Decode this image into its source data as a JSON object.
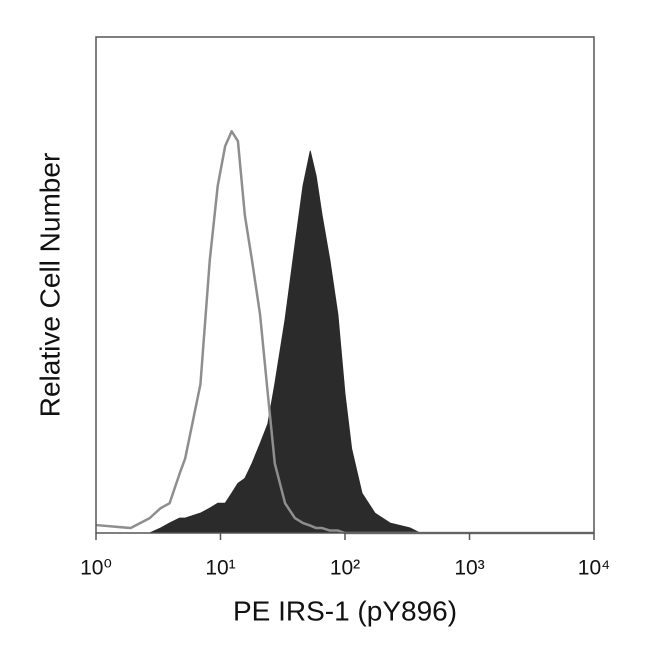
{
  "chart_data": {
    "type": "histogram",
    "xlabel": "PE IRS-1 (pY896)",
    "ylabel": "Relative Cell Number",
    "xscale": "log",
    "xlim": [
      1,
      10000
    ],
    "ylim": [
      0,
      100
    ],
    "xticks": [
      {
        "value": 1,
        "label": "10⁰"
      },
      {
        "value": 10,
        "label": "10¹"
      },
      {
        "value": 100,
        "label": "10²"
      },
      {
        "value": 1000,
        "label": "10³"
      },
      {
        "value": 10000,
        "label": "10⁴"
      }
    ],
    "x": [
      1,
      1.9,
      2.7,
      3.3,
      3.9,
      4.7,
      5.2,
      6.9,
      8.2,
      9.5,
      10.9,
      12.3,
      13.8,
      15.7,
      17.9,
      20.8,
      24,
      27.3,
      33,
      39.6,
      46,
      52.6,
      58.6,
      65.5,
      75.6,
      87.7,
      100,
      113,
      137,
      174,
      230,
      334,
      400,
      10000
    ],
    "series": [
      {
        "color": "#2b2b2b",
        "fill": true,
        "values": [
          0,
          0,
          0,
          1,
          2,
          3,
          3,
          4,
          5,
          6,
          6,
          8,
          10,
          11,
          14,
          18,
          22,
          30,
          43,
          58,
          70,
          77,
          72,
          64,
          55,
          44,
          28,
          17,
          8,
          4,
          2,
          1,
          0,
          0
        ]
      },
      {
        "color": "#8e8e8e",
        "fill": false,
        "values": [
          1.6,
          1,
          3,
          5,
          6,
          12,
          15,
          30,
          55,
          70,
          78,
          81,
          79,
          64,
          55,
          44,
          28,
          14,
          6,
          3,
          2,
          1.5,
          1,
          1,
          0.5,
          0.5,
          0,
          0,
          0,
          0,
          0,
          0,
          0,
          0
        ]
      }
    ]
  }
}
